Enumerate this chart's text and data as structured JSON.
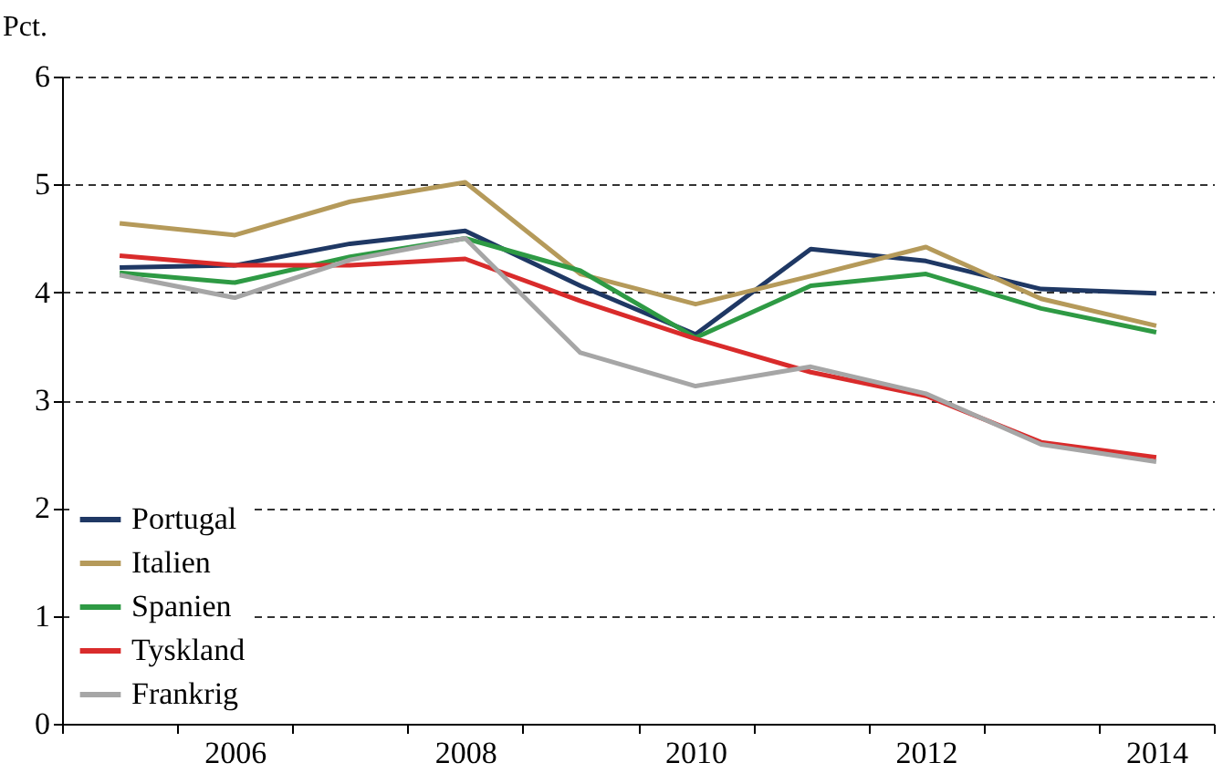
{
  "chart_data": {
    "type": "line",
    "ylabel": "Pct.",
    "categories": [
      null,
      "2006",
      null,
      "2008",
      null,
      "2010",
      null,
      "2012",
      null,
      "2014"
    ],
    "ylim": [
      0,
      6
    ],
    "yticks": [
      0,
      1,
      2,
      3,
      4,
      5,
      6
    ],
    "grid": "y",
    "legend": "bottom left",
    "line_style": "solid",
    "series": [
      {
        "name": "Portugal",
        "color": "#1f3864",
        "values": [
          4.23,
          4.25,
          4.45,
          4.57,
          4.06,
          3.61,
          4.4,
          4.29,
          4.03,
          3.99
        ]
      },
      {
        "name": "Italien",
        "color": "#b59a5a",
        "values": [
          4.64,
          4.53,
          4.84,
          5.02,
          4.17,
          3.89,
          4.15,
          4.42,
          3.94,
          3.69
        ]
      },
      {
        "name": "Spanien",
        "color": "#2e9a44",
        "values": [
          4.18,
          4.09,
          4.33,
          4.5,
          4.2,
          3.58,
          4.06,
          4.17,
          3.85,
          3.63
        ]
      },
      {
        "name": "Tyskland",
        "color": "#d92b2b",
        "values": [
          4.34,
          4.25,
          4.25,
          4.31,
          3.92,
          3.57,
          3.26,
          3.04,
          2.61,
          2.47
        ]
      },
      {
        "name": "Frankrig",
        "color": "#a6a6a6",
        "values": [
          4.16,
          3.95,
          4.3,
          4.5,
          3.44,
          3.13,
          3.31,
          3.06,
          2.59,
          2.43
        ]
      }
    ]
  }
}
